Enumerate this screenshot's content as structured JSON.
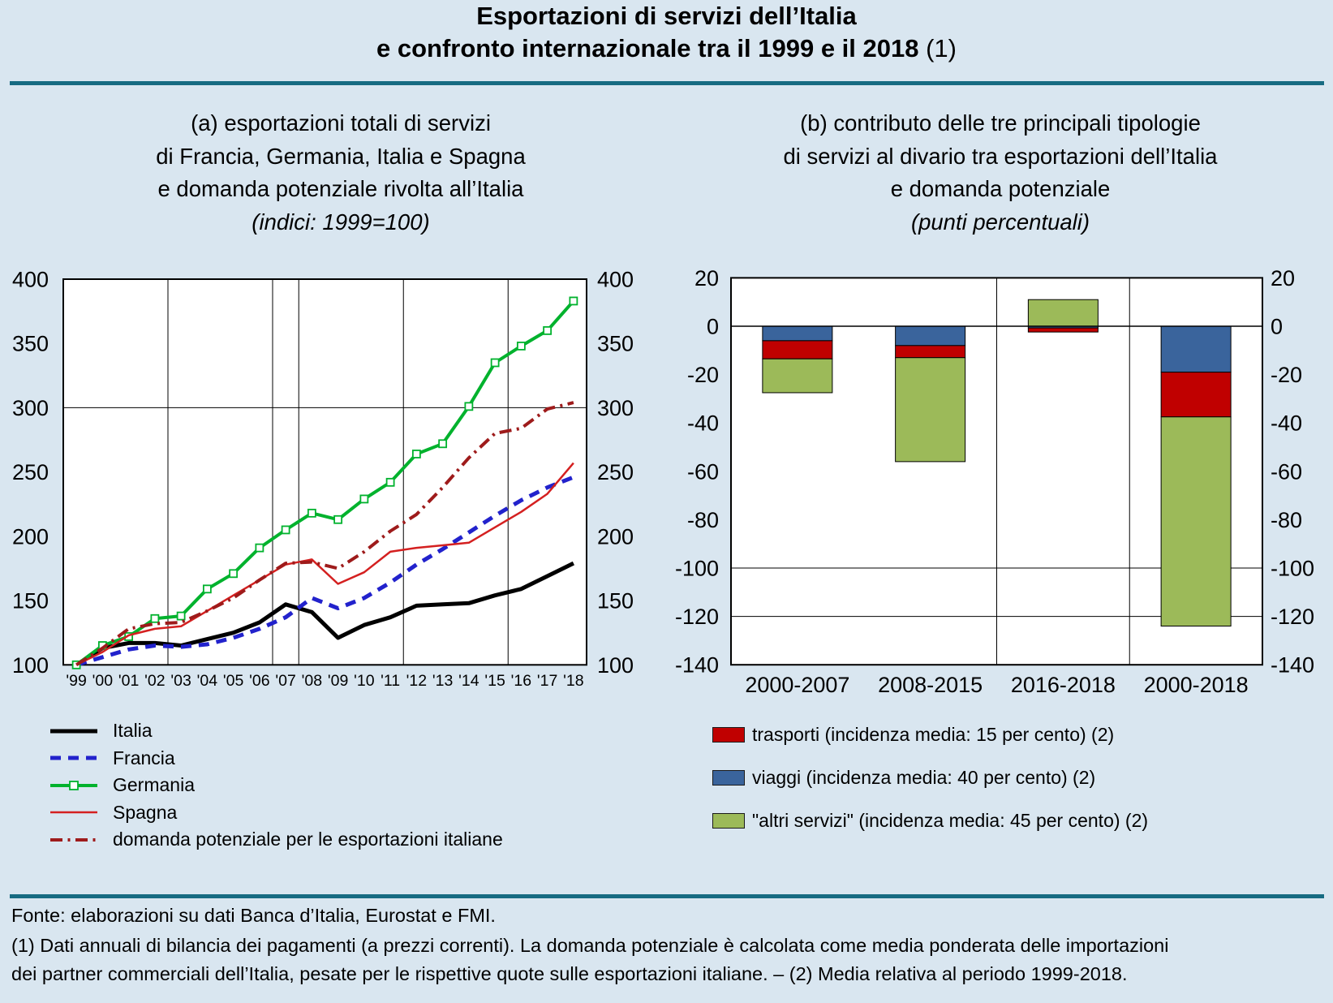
{
  "page_title": {
    "line1": "Esportazioni di servizi dell’Italia",
    "line2": "e confronto internazionale tra il 1999 e il 2018",
    "note": "(1)"
  },
  "panel_a": {
    "title_lines": [
      "(a) esportazioni totali di servizi",
      "di Francia, Germania, Italia e Spagna",
      "e domanda potenziale rivolta all’Italia"
    ],
    "subtitle": "(indici: 1999=100)"
  },
  "panel_b": {
    "title_lines": [
      "(b) contributo delle tre principali tipologie",
      "di servizi al divario tra esportazioni dell’Italia",
      "e domanda potenziale"
    ],
    "subtitle": "(punti percentuali)"
  },
  "chart_data": [
    {
      "id": "panel_a_lines",
      "type": "line",
      "title": "(a) esportazioni totali di servizi di Francia, Germania, Italia e Spagna e domanda potenziale rivolta all'Italia",
      "unit_note": "indici: 1999=100",
      "x_labels": [
        "'99",
        "'00",
        "'01",
        "'02",
        "'03",
        "'04",
        "'05",
        "'06",
        "'07",
        "'08",
        "'09",
        "'10",
        "'11",
        "'12",
        "'13",
        "'14",
        "'15",
        "'16",
        "'17",
        "'18"
      ],
      "ylim": [
        100,
        400
      ],
      "yticks": [
        400,
        350,
        300,
        250,
        200,
        150,
        100
      ],
      "grid_y": [
        300
      ],
      "grid_x_after_labels": [
        "'02",
        "'06",
        "'07",
        "'11",
        "'15"
      ],
      "legend_position": "bottom-left",
      "series": [
        {
          "name": "Italia",
          "color": "#000000",
          "line_style": "solid",
          "thickness": "thick",
          "marker": "none",
          "values": [
            100,
            113,
            117,
            117,
            115,
            120,
            125,
            133,
            147,
            141,
            121,
            131,
            137,
            146,
            147,
            148,
            154,
            159,
            169,
            179
          ]
        },
        {
          "name": "Francia",
          "color": "#2222cc",
          "line_style": "dashed",
          "thickness": "thick",
          "marker": "none",
          "values": [
            100,
            106,
            112,
            115,
            114,
            116,
            121,
            128,
            137,
            152,
            144,
            152,
            164,
            178,
            190,
            203,
            216,
            228,
            238,
            246
          ]
        },
        {
          "name": "Germania",
          "color": "#00b22d",
          "line_style": "solid",
          "thickness": "medium",
          "marker": "square-open",
          "values": [
            100,
            115,
            122,
            136,
            138,
            159,
            171,
            191,
            205,
            218,
            213,
            229,
            242,
            264,
            272,
            301,
            335,
            348,
            360,
            383
          ]
        },
        {
          "name": "Spagna",
          "color": "#d42020",
          "line_style": "solid",
          "thickness": "thin",
          "marker": "none",
          "values": [
            100,
            110,
            123,
            128,
            130,
            142,
            154,
            166,
            178,
            182,
            163,
            172,
            188,
            191,
            193,
            195,
            207,
            219,
            233,
            257
          ]
        },
        {
          "name": "domanda potenziale per le esportazioni italiane",
          "color": "#9e1b1b",
          "line_style": "dash-dot",
          "thickness": "medium",
          "marker": "none",
          "values": [
            100,
            113,
            128,
            132,
            133,
            142,
            152,
            166,
            179,
            180,
            175,
            188,
            204,
            217,
            238,
            261,
            280,
            284,
            299,
            304
          ]
        }
      ]
    },
    {
      "id": "panel_b_bars",
      "type": "bar",
      "title": "(b) contributo delle tre principali tipologie di servizi al divario tra esportazioni dell'Italia e domanda potenziale",
      "unit_note": "punti percentuali",
      "categories": [
        "2000-2007",
        "2008-2015",
        "2016-2018",
        "2000-2018"
      ],
      "ylim": [
        -140,
        20
      ],
      "yticks": [
        20,
        0,
        -20,
        -40,
        -60,
        -80,
        -100,
        -120,
        -140
      ],
      "grid_y": [
        -100,
        -120
      ],
      "grid_x_boundaries": [
        2,
        3
      ],
      "stacked": true,
      "series": [
        {
          "name": "viaggi",
          "color": "#3a649c",
          "values": [
            -6,
            -8,
            -0.7,
            -19
          ]
        },
        {
          "name": "trasporti",
          "color": "#c00000",
          "values": [
            -7.5,
            -5,
            -1.7,
            -18.5
          ]
        },
        {
          "name": "altri servizi",
          "color": "#9cba59",
          "values": [
            -14,
            -43,
            11,
            -86.5
          ]
        }
      ]
    }
  ],
  "legend_b": {
    "items": [
      {
        "series": "trasporti",
        "label": "trasporti (incidenza media: 15 per cento)  (2)"
      },
      {
        "series": "viaggi",
        "label": "viaggi (incidenza media: 40 per cento) (2)"
      },
      {
        "series": "altri servizi",
        "label": "\"altri servizi\" (incidenza media: 45 per cento)  (2)"
      }
    ]
  },
  "footer": {
    "source": "Fonte: elaborazioni su dati Banca d’Italia, Eurostat e FMI.",
    "note_line1": "(1) Dati annuali di bilancia dei pagamenti (a prezzi correnti). La domanda potenziale è calcolata come media ponderata delle importazioni",
    "note_line2": "dei partner commerciali dell’Italia, pesate per le rispettive quote sulle esportazioni italiane. – (2) Media relativa al periodo 1999-2018."
  }
}
